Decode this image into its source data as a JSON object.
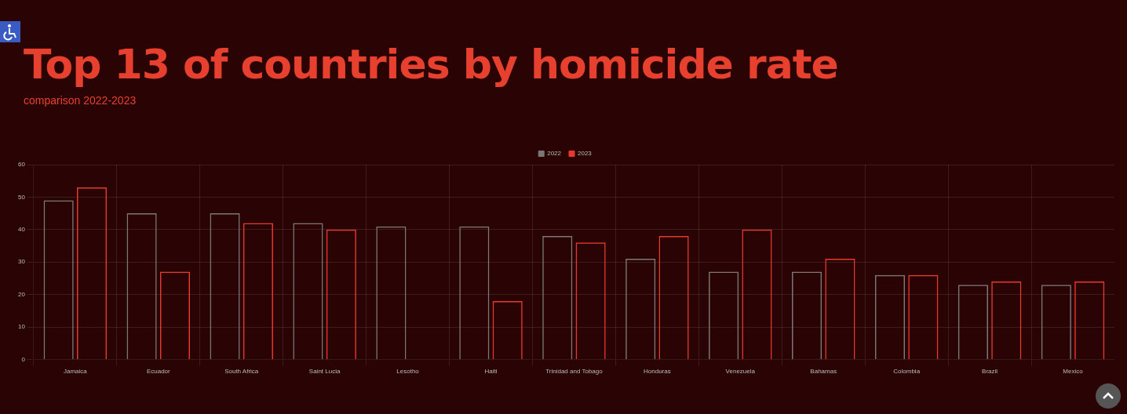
{
  "chart_data": {
    "type": "bar",
    "title": "Top 13 of countries by homicide rate",
    "subtitle": "comparison 2022-2023",
    "categories": [
      "Jamaica",
      "Ecuador",
      "South Africa",
      "Saint Lucia",
      "Lesotho",
      "Haiti",
      "Trinidad and Tobago",
      "Honduras",
      "Venezuela",
      "Bahamas",
      "Colombia",
      "Brazil",
      "Mexico"
    ],
    "series": [
      {
        "name": "2022",
        "color": "#7c7878",
        "values": [
          49,
          45,
          45,
          42,
          41,
          41,
          38,
          31,
          27,
          27,
          26,
          23,
          23
        ]
      },
      {
        "name": "2023",
        "color": "#e8392e",
        "values": [
          53,
          27,
          42,
          40,
          null,
          18,
          36,
          38,
          40,
          31,
          26,
          24,
          24
        ]
      }
    ],
    "ylim": [
      0,
      60
    ],
    "yticks": [
      0,
      10,
      20,
      30,
      40,
      50,
      60
    ],
    "grid": true,
    "legend": "top"
  }
}
